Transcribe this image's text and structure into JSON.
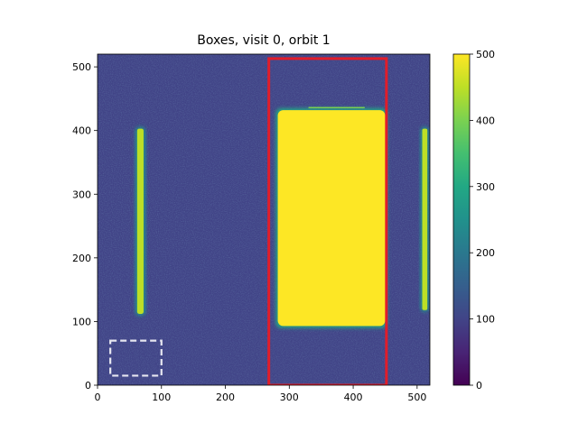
{
  "chart_data": {
    "type": "heatmap",
    "title": "Boxes, visit 0, orbit 1",
    "xlabel": "",
    "ylabel": "",
    "xlim": [
      0,
      520
    ],
    "ylim": [
      0,
      520
    ],
    "xticks": [
      0,
      100,
      200,
      300,
      400,
      500
    ],
    "yticks": [
      0,
      100,
      200,
      300,
      400,
      500
    ],
    "colormap": "viridis",
    "colorbar": {
      "range": [
        0,
        500
      ],
      "ticks": [
        0,
        100,
        200,
        300,
        400,
        500
      ]
    },
    "background_level": 100,
    "bright_regions": [
      {
        "name": "left-stripe",
        "x": [
          62,
          72
        ],
        "y": [
          112,
          403
        ],
        "level": 450
      },
      {
        "name": "main-spectrum",
        "x": [
          282,
          450
        ],
        "y": [
          93,
          432
        ],
        "level": 500
      },
      {
        "name": "right-stripe",
        "x": [
          508,
          516
        ],
        "y": [
          118,
          403
        ],
        "level": 430
      }
    ],
    "faint_line": {
      "x": [
        330,
        418
      ],
      "y": [
        435,
        437
      ],
      "level": 380
    },
    "boxes": [
      {
        "name": "aperture-box",
        "x": [
          268,
          452
        ],
        "y": [
          0,
          513
        ],
        "color": "#e11d2a",
        "style": "solid"
      },
      {
        "name": "background-box",
        "x": [
          20,
          100
        ],
        "y": [
          15,
          70
        ],
        "color": "#e6e6f0",
        "style": "dashed"
      }
    ]
  }
}
